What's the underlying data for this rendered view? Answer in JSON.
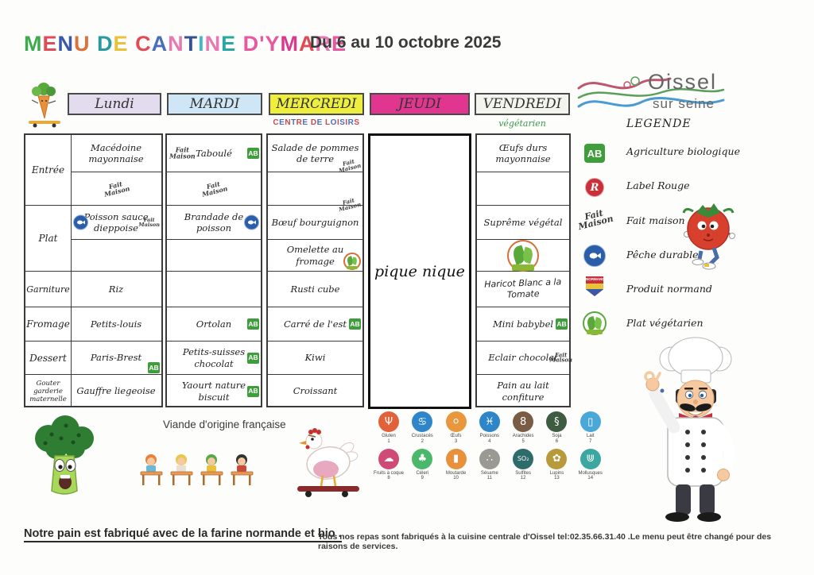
{
  "title": {
    "text": "MENU DE CANTINE D'YMARE",
    "letter_colors": [
      "#3daa4e",
      "#e04b55",
      "#3a57a8",
      "#e0703a",
      null,
      "#2a9aa0",
      "#e8c23a",
      null,
      "#e04b55",
      "#4a6fb8",
      "#e878b0",
      "#37508f",
      "#45b8c8",
      "#e878b0",
      "#2aa8a0",
      null,
      "#e858a0",
      "#e858a0",
      "#e858a0",
      "#d83a8e",
      "#e04b55",
      "#e878b0",
      "#e858a0"
    ],
    "date_range": "Du 6 au 10 octobre 2025"
  },
  "logo": {
    "name": "Oissel",
    "subtitle": "sur seine"
  },
  "header": {
    "days": [
      {
        "label": "Lundi",
        "bg": "#e2dcee",
        "note": ""
      },
      {
        "label": "MARDI",
        "bg": "#cfe6f7",
        "note": ""
      },
      {
        "label": "MERCREDI",
        "bg": "#eeee3e",
        "note": "CENTRE DE LOISIRS"
      },
      {
        "label": "JEUDI",
        "bg": "#e0368f",
        "note": ""
      },
      {
        "label": "VENDREDI",
        "bg": "#f4f4ef",
        "note": "végétarien"
      }
    ],
    "centre_note_colors": [
      "#c84a4a",
      "#4a6fb8"
    ]
  },
  "row_labels": [
    "Entrée",
    "Plat",
    "Garniture",
    "Fromage",
    "Dessert",
    "Gouter garderie maternelle"
  ],
  "menu": {
    "lundi": [
      "Macédoine mayonnaise",
      "",
      "Poisson sauce dieppoise",
      "",
      "Riz",
      "Petits-louis",
      "Paris-Brest",
      "Gauffre liegeoise"
    ],
    "mardi": [
      "Taboulé",
      "",
      "Brandade de poisson",
      "",
      "",
      "Ortolan",
      "Petits-suisses chocolat",
      "Yaourt nature biscuit"
    ],
    "mercredi": [
      "Salade de pommes de terre",
      "",
      "Bœuf bourguignon",
      "Omelette au fromage",
      "Rusti cube",
      "Carré de l'est",
      "Kiwi",
      "Croissant"
    ],
    "jeudi_label": "pique nique",
    "vendredi": [
      "Œufs durs mayonnaise",
      "",
      "Suprême végétal",
      "",
      "Haricot Blanc a la Tomate",
      "Mini babybel",
      "Eclair chocolat",
      "Pain au lait confiture"
    ]
  },
  "fait_maison_label": "Fait Maison",
  "ab_label": "AB",
  "legend": {
    "heading": "LEGENDE",
    "items": [
      {
        "icon": "ab-icon",
        "label": "Agriculture biologique"
      },
      {
        "icon": "label-rouge-icon",
        "label": "Label Rouge"
      },
      {
        "icon": "fait-maison-icon",
        "label": "Fait maison"
      },
      {
        "icon": "peche-durable-icon",
        "label": "Pêche durable"
      },
      {
        "icon": "produit-normand-icon",
        "label": "Produit normand"
      },
      {
        "icon": "plat-vegetarien-icon",
        "label": "Plat végétarien"
      }
    ]
  },
  "allergens": [
    {
      "name": "Gluten",
      "num": "1",
      "color": "#e0613a",
      "glyph": "Ψ",
      "icon": "gluten-icon"
    },
    {
      "name": "Crustacés",
      "num": "2",
      "color": "#2e86c8",
      "glyph": "♋",
      "icon": "crustaces-icon"
    },
    {
      "name": "Œufs",
      "num": "3",
      "color": "#e8973c",
      "glyph": "⚪",
      "icon": "oeufs-icon"
    },
    {
      "name": "Poissons",
      "num": "4",
      "color": "#2e86c8",
      "glyph": "♓",
      "icon": "poissons-icon"
    },
    {
      "name": "Arachides",
      "num": "5",
      "color": "#7a5c44",
      "glyph": "8",
      "icon": "arachides-icon"
    },
    {
      "name": "Soja",
      "num": "6",
      "color": "#3d5c40",
      "glyph": "§",
      "icon": "soja-icon"
    },
    {
      "name": "Lait",
      "num": "7",
      "color": "#4aa8d8",
      "glyph": "▯",
      "icon": "lait-icon"
    },
    {
      "name": "Fruits à coque",
      "num": "8",
      "color": "#d04a78",
      "glyph": "☁",
      "icon": "fruits-a-coque-icon"
    },
    {
      "name": "Céleri",
      "num": "9",
      "color": "#4ab86a",
      "glyph": "♣",
      "icon": "celeri-icon"
    },
    {
      "name": "Moutarde",
      "num": "10",
      "color": "#e8913c",
      "glyph": "▮",
      "icon": "moutarde-icon"
    },
    {
      "name": "Sésame",
      "num": "11",
      "color": "#9a9a92",
      "glyph": "∴",
      "icon": "sesame-icon"
    },
    {
      "name": "Sulfites",
      "num": "12",
      "color": "#2e6b6b",
      "glyph": "SO₂",
      "icon": "sulfites-icon"
    },
    {
      "name": "Lupins",
      "num": "13",
      "color": "#b89a3c",
      "glyph": "✿",
      "icon": "lupins-icon"
    },
    {
      "name": "Mollusques",
      "num": "14",
      "color": "#3aa8a0",
      "glyph": "⋓",
      "icon": "mollusques-icon"
    }
  ],
  "notes": {
    "viande": "Viande d'origine française"
  },
  "footer": {
    "left": "Notre pain est fabriqué avec de la farine normande et bio .",
    "right": "Tous nos repas sont fabriqués à la cuisine centrale d'Oissel tel:02.35.66.31.40 .Le menu peut être changé pour des raisons de services."
  }
}
